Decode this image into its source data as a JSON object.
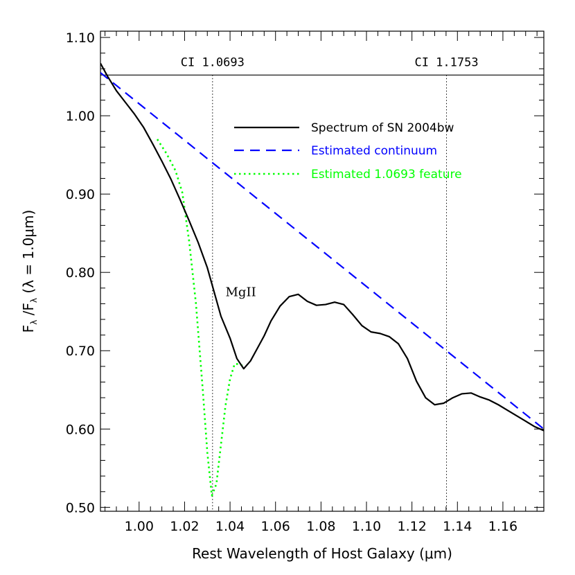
{
  "chart_data": {
    "type": "line",
    "xlabel": "Rest Wavelength of Host Galaxy (μm)",
    "ylabel_main": "F",
    "ylabel_sub": "λ",
    "ylabel_rest": "(λ = 1.0μm)",
    "xlim": [
      0.983,
      1.178
    ],
    "ylim": [
      0.495,
      1.108
    ],
    "x_ticks": [
      1.0,
      1.02,
      1.04,
      1.06,
      1.08,
      1.1,
      1.12,
      1.14,
      1.16
    ],
    "x_tick_labels": [
      "1.00",
      "1.02",
      "1.04",
      "1.06",
      "1.08",
      "1.10",
      "1.12",
      "1.14",
      "1.16"
    ],
    "y_ticks": [
      0.5,
      0.6,
      0.7,
      0.8,
      0.9,
      1.0,
      1.1
    ],
    "y_tick_labels": [
      "0.50",
      "0.60",
      "0.70",
      "0.80",
      "0.90",
      "1.00",
      "1.10"
    ],
    "horizontal_line_y": 1.052,
    "vertical_lines": [
      {
        "x": 1.0323,
        "label": "CI 1.0693"
      },
      {
        "x": 1.1352,
        "label": "CI 1.1753"
      }
    ],
    "annotations": [
      {
        "text": "MgII",
        "x": 1.038,
        "y": 0.775
      }
    ],
    "series": [
      {
        "name": "Spectrum of SN 2004bw",
        "color": "#000000",
        "style": "solid",
        "x": [
          0.983,
          0.986,
          0.99,
          0.994,
          0.998,
          1.002,
          1.006,
          1.01,
          1.014,
          1.018,
          1.022,
          1.026,
          1.03,
          1.033,
          1.036,
          1.04,
          1.043,
          1.046,
          1.049,
          1.052,
          1.055,
          1.058,
          1.062,
          1.066,
          1.07,
          1.074,
          1.078,
          1.082,
          1.086,
          1.09,
          1.094,
          1.098,
          1.102,
          1.106,
          1.11,
          1.114,
          1.118,
          1.122,
          1.126,
          1.13,
          1.134,
          1.138,
          1.142,
          1.146,
          1.15,
          1.154,
          1.158,
          1.162,
          1.166,
          1.17,
          1.174,
          1.178
        ],
        "values": [
          1.067,
          1.051,
          1.032,
          1.017,
          1.002,
          0.985,
          0.964,
          0.942,
          0.919,
          0.893,
          0.866,
          0.838,
          0.806,
          0.775,
          0.744,
          0.716,
          0.69,
          0.677,
          0.687,
          0.703,
          0.719,
          0.738,
          0.757,
          0.769,
          0.772,
          0.763,
          0.758,
          0.759,
          0.762,
          0.759,
          0.746,
          0.732,
          0.724,
          0.722,
          0.718,
          0.709,
          0.69,
          0.661,
          0.64,
          0.631,
          0.633,
          0.64,
          0.645,
          0.646,
          0.641,
          0.637,
          0.631,
          0.624,
          0.617,
          0.61,
          0.603,
          0.598
        ]
      },
      {
        "name": "Estimated continuum",
        "color": "#0000ff",
        "style": "dashed",
        "x": [
          0.983,
          1.178
        ],
        "values": [
          1.055,
          0.6
        ]
      },
      {
        "name": "Estimated 1.0693 feature",
        "color": "#00ff00",
        "style": "dotted",
        "x": [
          1.008,
          1.012,
          1.016,
          1.019,
          1.022,
          1.025,
          1.028,
          1.03,
          1.032,
          1.034,
          1.036,
          1.038,
          1.04,
          1.042,
          1.044,
          1.046
        ],
        "values": [
          0.97,
          0.952,
          0.93,
          0.902,
          0.84,
          0.76,
          0.65,
          0.57,
          0.515,
          0.53,
          0.58,
          0.63,
          0.664,
          0.683,
          0.683,
          0.68
        ]
      }
    ]
  }
}
